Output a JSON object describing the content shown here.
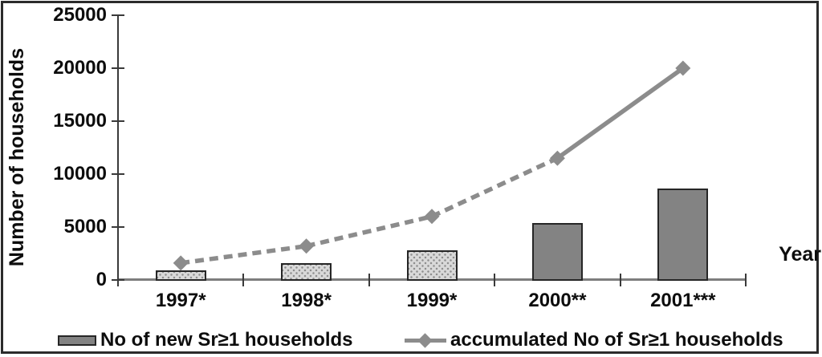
{
  "chart_data": {
    "type": "bar",
    "subtype": "combo-bar-line",
    "title": "",
    "xlabel": "Year",
    "ylabel": "Number of households",
    "ylim": [
      0,
      25000
    ],
    "ytick_values": [
      0,
      5000,
      10000,
      15000,
      20000,
      25000
    ],
    "ytick_labels": [
      "0",
      "5000",
      "10000",
      "15000",
      "20000",
      "25000"
    ],
    "grid": false,
    "legend_position": "bottom",
    "categories": [
      "1997*",
      "1998*",
      "1999*",
      "2000**",
      "2001***"
    ],
    "series": [
      {
        "name": "No of new Sr≥1 households",
        "type": "bar",
        "values": [
          900,
          1600,
          2800,
          5400,
          8600
        ],
        "bar_fills": [
          "pattern",
          "pattern",
          "pattern",
          "solid",
          "solid"
        ],
        "solid_color": "#838383",
        "pattern_base_color": "#d9d9d9"
      },
      {
        "name": "accumulated No of Sr≥1 households",
        "type": "line",
        "values": [
          1600,
          3200,
          6000,
          11500,
          20000
        ],
        "segment_styles": [
          "dashed",
          "dashed",
          "dashed",
          "solid"
        ],
        "marker": "diamond",
        "color": "#8c8c8c"
      }
    ]
  }
}
